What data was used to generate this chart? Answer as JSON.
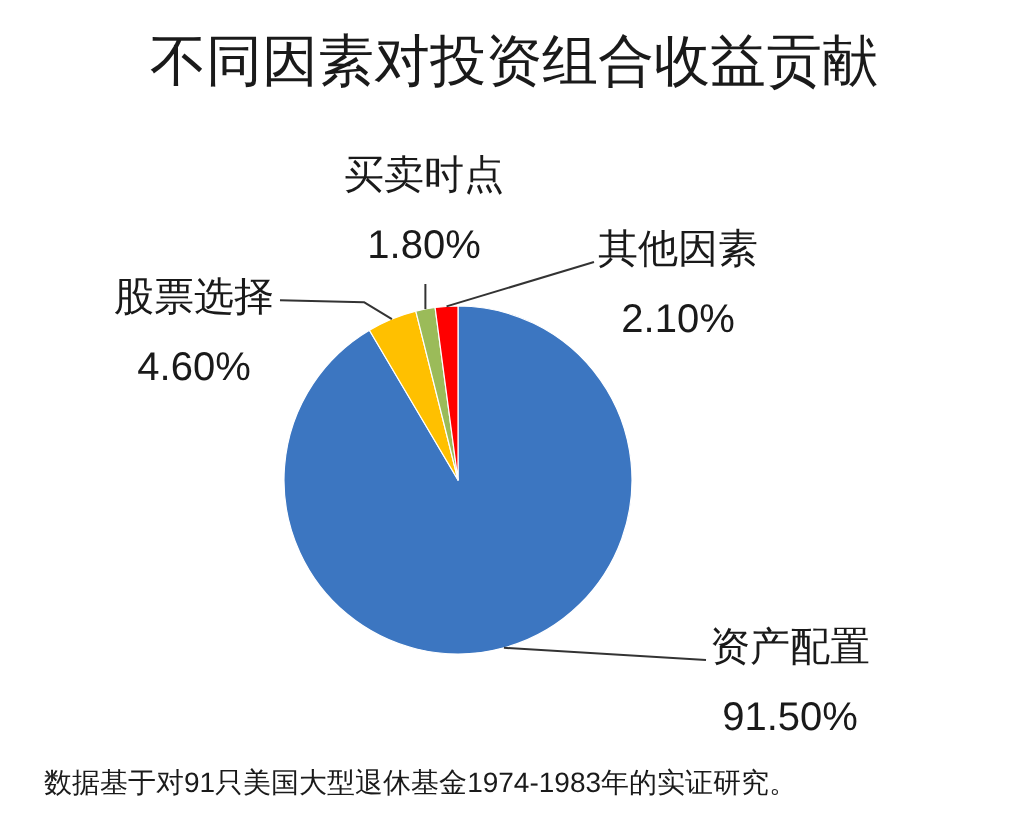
{
  "chart_data": {
    "type": "pie",
    "title": "不同因素对投资组合收益贡献",
    "categories": [
      "资产配置",
      "股票选择",
      "买卖时点",
      "其他因素"
    ],
    "values": [
      91.5,
      4.6,
      1.8,
      2.1
    ],
    "value_labels": [
      "91.50%",
      "4.60%",
      "1.80%",
      "2.10%"
    ],
    "colors": [
      "#3c76c1",
      "#ffc000",
      "#9bbb59",
      "#ff0000"
    ],
    "annotations": [
      "数据基于对91只美国大型退休基金1974-1983年的实证研究。"
    ]
  }
}
